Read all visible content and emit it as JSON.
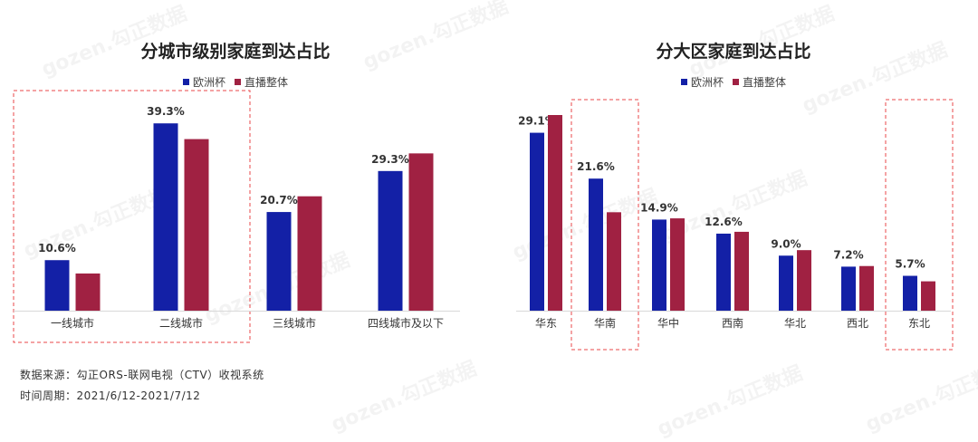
{
  "colors": {
    "euro_cup": "#1320a6",
    "live_overall": "#a02142",
    "highlight_border": "#e8474a"
  },
  "legend": {
    "series_a": "欧洲杯",
    "series_b": "直播整体"
  },
  "footer": {
    "source": "数据来源：勾正ORS-联网电视（CTV）收视系统",
    "period": "时间周期：2021/6/12-2021/7/12"
  },
  "watermark": {
    "text": "gozen.勾正数据"
  },
  "chart_data": [
    {
      "type": "bar",
      "title": "分城市级别家庭到达占比",
      "categories": [
        "一线城市",
        "二线城市",
        "三线城市",
        "四线城市及以下"
      ],
      "series": [
        {
          "name": "欧洲杯",
          "values": [
            10.6,
            39.3,
            20.7,
            29.3
          ],
          "labels": [
            "10.6%",
            "39.3%",
            "20.7%",
            "29.3%"
          ]
        },
        {
          "name": "直播整体",
          "values": [
            7.8,
            36.0,
            24.0,
            33.0
          ]
        }
      ],
      "ylim": [
        0,
        42
      ],
      "unit": "%",
      "highlighted_categories": [
        "一线城市",
        "二线城市"
      ],
      "legend_position": "top-center",
      "grid": false
    },
    {
      "type": "bar",
      "title": "分大区家庭到达占比",
      "categories": [
        "华东",
        "华南",
        "华中",
        "西南",
        "华北",
        "西北",
        "东北"
      ],
      "series": [
        {
          "name": "欧洲杯",
          "values": [
            29.1,
            21.6,
            14.9,
            12.6,
            9.0,
            7.2,
            5.7
          ],
          "labels": [
            "29.1%",
            "21.6%",
            "14.9%",
            "12.6%",
            "9.0%",
            "7.2%",
            "5.7%"
          ]
        },
        {
          "name": "直播整体",
          "values": [
            32.0,
            16.1,
            15.1,
            12.9,
            9.9,
            7.3,
            4.8
          ]
        }
      ],
      "ylim": [
        0,
        32
      ],
      "unit": "%",
      "highlighted_categories": [
        "华南",
        "东北"
      ],
      "legend_position": "top-center",
      "grid": false
    }
  ]
}
